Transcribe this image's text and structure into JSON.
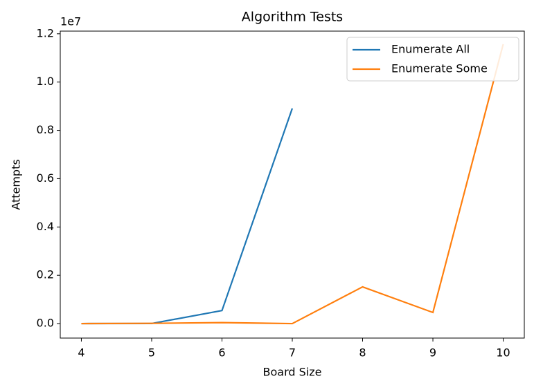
{
  "chart_data": {
    "type": "line",
    "title": "Algorithm Tests",
    "xlabel": "Board Size",
    "ylabel": "Attempts",
    "y_offset_label": "1e7",
    "x": [
      4,
      5,
      6,
      7,
      8,
      9,
      10
    ],
    "series": [
      {
        "name": "Enumerate All",
        "color": "#1f77b4",
        "values": [
          0,
          0.0003,
          0.054,
          0.891,
          null,
          null,
          null
        ]
      },
      {
        "name": "Enumerate Some",
        "color": "#ff7f0e",
        "values": [
          0,
          0.001,
          0.004,
          0,
          0.152,
          0.046,
          1.157
        ]
      }
    ],
    "xlim": [
      3.7,
      10.3
    ],
    "xticks": [
      4,
      5,
      6,
      7,
      8,
      9,
      10
    ],
    "ylim": [
      -0.06,
      1.211
    ],
    "yticks": [
      {
        "value": 0,
        "label": "0.0"
      },
      0.2,
      0.4,
      0.6,
      0.8,
      {
        "value": 1,
        "label": "1.0"
      },
      1.2
    ],
    "legend": "upper right"
  }
}
